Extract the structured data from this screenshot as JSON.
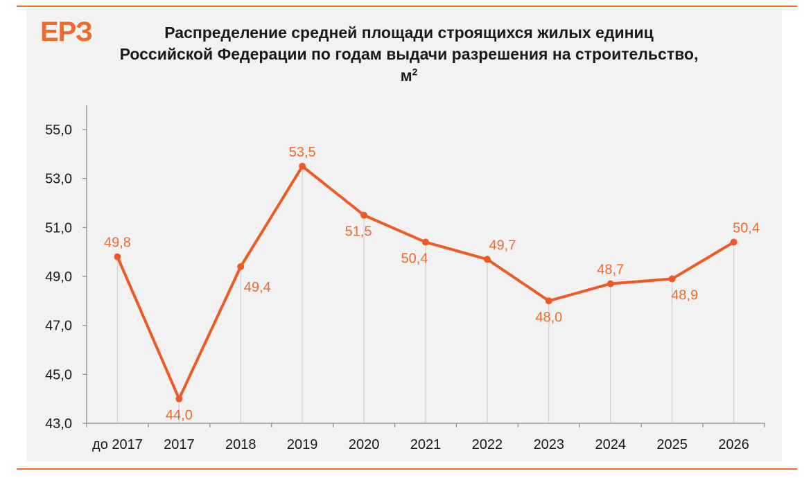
{
  "header": {
    "logo": "ЕРЗ",
    "title_main": "Распределение  средней площади строящихся жилых единиц Российской Федерации  по годам выдачи разрешения  на строительство, м",
    "title_sup": "2"
  },
  "colors": {
    "accent": "#f06a2a",
    "line": "#ee5a24",
    "grid": "#d0d0d0",
    "axis": "#888888",
    "text": "#1a1a1a"
  },
  "chart_data": {
    "type": "line",
    "title": "Распределение  средней площади строящихся жилых единиц Российской Федерации  по годам выдачи разрешения  на строительство, м²",
    "categories": [
      "до 2017",
      "2017",
      "2018",
      "2019",
      "2020",
      "2021",
      "2022",
      "2023",
      "2024",
      "2025",
      "2026"
    ],
    "values": [
      49.8,
      44.0,
      49.4,
      53.5,
      51.5,
      50.4,
      49.7,
      48.0,
      48.7,
      48.9,
      50.4
    ],
    "labels": [
      "49,8",
      "44,0",
      "49,4",
      "53,5",
      "51,5",
      "50,4",
      "49,7",
      "48,0",
      "48,7",
      "48,9",
      "50,4"
    ],
    "label_positions": [
      "above",
      "below",
      "below",
      "above",
      "below",
      "below",
      "above",
      "below",
      "above",
      "below",
      "above"
    ],
    "yticks": [
      "43,0",
      "45,0",
      "47,0",
      "49,0",
      "51,0",
      "53,0",
      "55,0"
    ],
    "ytick_values": [
      43,
      45,
      47,
      49,
      51,
      53,
      55
    ],
    "ylim": [
      43,
      56
    ],
    "xlabel": "",
    "ylabel": "",
    "grid": "vertical drop lines",
    "legend": "none"
  }
}
